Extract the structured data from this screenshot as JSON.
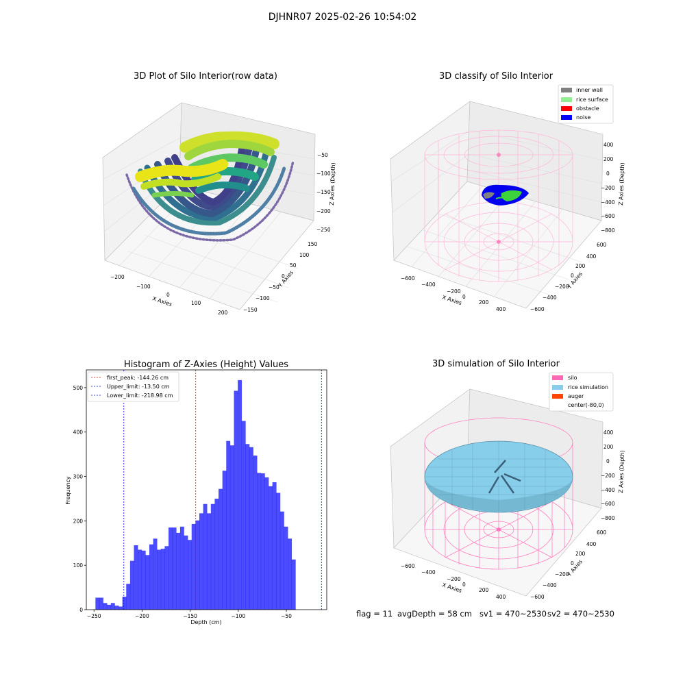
{
  "suptitle": "DJHNR07 2025-02-26 10:54:02",
  "panels": {
    "raw": {
      "title": "3D Plot of Silo Interior(row data)",
      "xlabel": "X Axies",
      "ylabel": "Y Axies",
      "zlabel": "Z Axies (Depth)",
      "xticks": [
        "−200",
        "−100",
        "0",
        "100",
        "200"
      ],
      "yticks": [
        "150",
        "100",
        "50",
        "0",
        "−50",
        "−100",
        "−150"
      ],
      "zticks": [
        "−50",
        "−100",
        "−150",
        "−200",
        "−250"
      ]
    },
    "classify": {
      "title": "3D classify of Silo Interior",
      "xlabel": "X Axies",
      "ylabel": "Y Axies",
      "zlabel": "Z Axies (Depth)",
      "xticks": [
        "−600",
        "−400",
        "−200",
        "0",
        "200",
        "400"
      ],
      "yticks": [
        "600",
        "400",
        "200",
        "0",
        "−200",
        "−400",
        "−600"
      ],
      "zticks": [
        "400",
        "200",
        "0",
        "−200",
        "−400",
        "−600",
        "−800"
      ],
      "legend": [
        {
          "label": "inner wall",
          "color": "#808080"
        },
        {
          "label": "rice surface",
          "color": "#90ee90"
        },
        {
          "label": "obstacle",
          "color": "#ff0000"
        },
        {
          "label": "noise",
          "color": "#0000ff"
        }
      ]
    },
    "simulation": {
      "title": "3D simulation of Silo Interior",
      "xlabel": "X Axies",
      "ylabel": "Y Axies",
      "zlabel": "Z Axies (Depth)",
      "xticks": [
        "−600",
        "−400",
        "−200",
        "0",
        "200",
        "400"
      ],
      "yticks": [
        "600",
        "400",
        "200",
        "0",
        "−200",
        "−400",
        "−600"
      ],
      "zticks": [
        "400",
        "200",
        "0",
        "−200",
        "−400",
        "−600",
        "−800"
      ],
      "legend": [
        {
          "label": "silo",
          "color": "#ff69b4"
        },
        {
          "label": "rice simulation",
          "color": "#87ceeb"
        },
        {
          "label": "auger",
          "color": "#ff4500"
        },
        {
          "label": "center(-80,0)",
          "color": "none"
        }
      ]
    }
  },
  "chart_data": [
    {
      "type": "bar",
      "title": "Histogram of Z-Axies (Height) Values",
      "xlabel": "Depth (cm)",
      "ylabel": "Frequency",
      "xlim": [
        -258,
        -8
      ],
      "ylim": [
        0,
        540
      ],
      "xticks": [
        -250,
        -200,
        -150,
        -100,
        -50
      ],
      "xtick_labels": [
        "−250",
        "−200",
        "−150",
        "−100",
        "−50"
      ],
      "yticks": [
        0,
        100,
        200,
        300,
        400,
        500
      ],
      "bar_color": "#0000ff",
      "bin_start": -248.5,
      "bin_width": 4.0,
      "values": [
        27,
        27,
        15,
        11,
        15,
        9,
        7,
        29,
        58,
        110,
        145,
        135,
        133,
        123,
        147,
        160,
        135,
        137,
        143,
        185,
        185,
        173,
        187,
        167,
        157,
        193,
        201,
        217,
        238,
        217,
        238,
        250,
        272,
        313,
        380,
        370,
        493,
        517,
        425,
        373,
        366,
        347,
        308,
        307,
        298,
        278,
        287,
        263,
        221,
        187,
        160,
        113
      ],
      "vlines": [
        {
          "label": "first_peak: -144.26 cm",
          "x": -144.26,
          "color": "#ff0000"
        },
        {
          "label": "Upper_limit: -13.50 cm",
          "x": -13.5,
          "color": "#0000ff"
        },
        {
          "label": "Lower_limit: -218.98 cm",
          "x": -218.98,
          "color": "#0000ff"
        }
      ]
    }
  ],
  "footer": {
    "flag": "flag = 11",
    "avg": "avgDepth = 58 cm",
    "sv1": "sv1 = 470~2530",
    "sv2": "sv2 = 470~2530"
  }
}
